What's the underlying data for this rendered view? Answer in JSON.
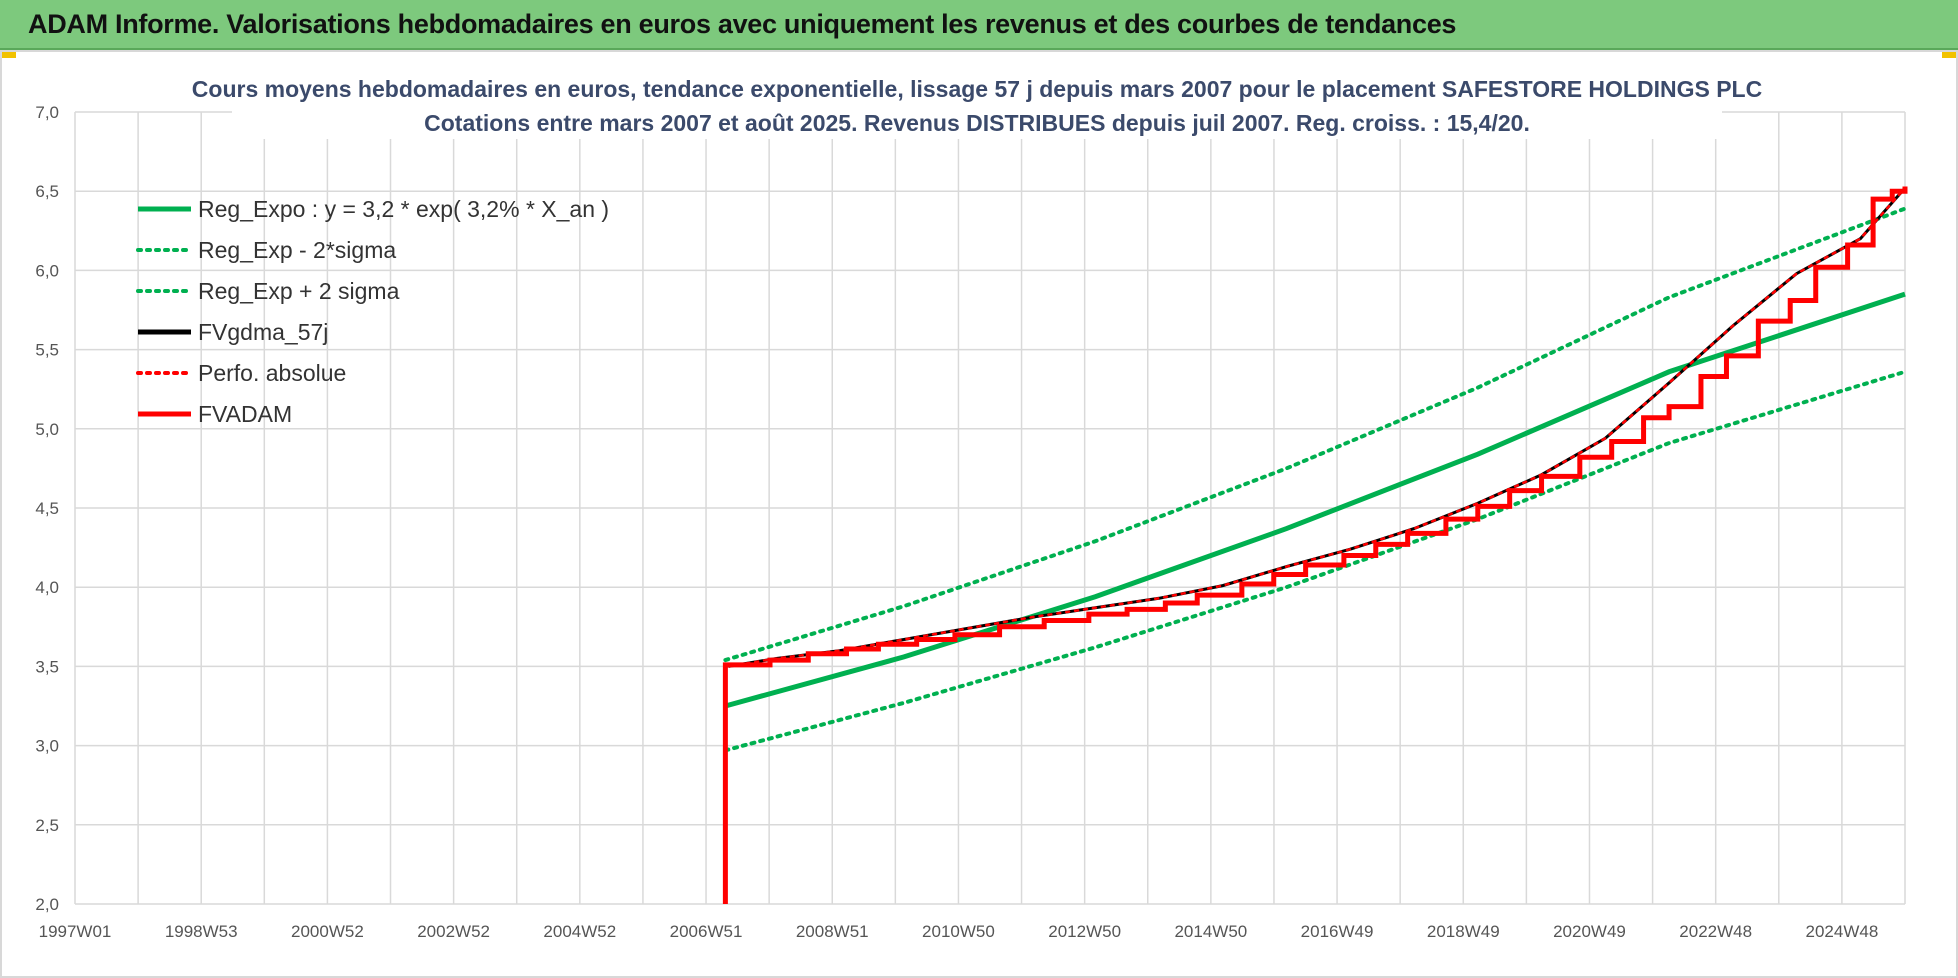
{
  "header": {
    "title": "ADAM Informe. Valorisations hebdomadaires en euros avec uniquement les revenus et des courbes de tendances"
  },
  "chart_data": {
    "type": "line",
    "title_line1": "Cours moyens hebdomadaires en euros, tendance exponentielle, lissage 57 j depuis mars 2007 pour le placement SAFESTORE HOLDINGS PLC",
    "title_line2": "Cotations entre mars 2007 et août 2025. Revenus DISTRIBUES depuis juil 2007. Reg. croiss. : 15,4/20.",
    "ylim": [
      2.0,
      7.0
    ],
    "xlim": [
      1997.0,
      2025.7
    ],
    "grid": true,
    "legend_position": "top-left",
    "y_ticks": [
      "2,0",
      "2,5",
      "3,0",
      "3,5",
      "4,0",
      "4,5",
      "5,0",
      "5,5",
      "6,0",
      "6,5",
      "7,0"
    ],
    "x_ticks": [
      "1997W01",
      "1998W53",
      "2000W52",
      "2002W52",
      "2004W52",
      "2006W51",
      "2008W51",
      "2010W50",
      "2012W50",
      "2014W50",
      "2016W49",
      "2018W49",
      "2020W49",
      "2022W48",
      "2024W48"
    ],
    "colors": {
      "green": "#00b050",
      "black": "#000000",
      "red": "#ff0000",
      "grid": "#d9d9d9"
    },
    "series": [
      {
        "name": "Reg_Expo : y = 3,2 * exp( 3,2% *  X_an )",
        "style": "solid",
        "color": "#00b050",
        "x": [
          2007.2,
          2010.0,
          2013.0,
          2016.0,
          2019.0,
          2022.0,
          2025.7
        ],
        "y": [
          3.25,
          3.56,
          3.94,
          4.37,
          4.84,
          5.36,
          5.85
        ]
      },
      {
        "name": "Reg_Exp - 2*sigma",
        "style": "dotted",
        "color": "#00b050",
        "x": [
          2007.2,
          2010.0,
          2013.0,
          2016.0,
          2019.0,
          2022.0,
          2025.7
        ],
        "y": [
          2.97,
          3.27,
          3.62,
          4.0,
          4.43,
          4.91,
          5.36
        ]
      },
      {
        "name": "Reg_Exp + 2 sigma",
        "style": "dotted",
        "color": "#00b050",
        "x": [
          2007.2,
          2010.0,
          2013.0,
          2016.0,
          2019.0,
          2022.0,
          2025.7
        ],
        "y": [
          3.54,
          3.88,
          4.29,
          4.75,
          5.26,
          5.83,
          6.39
        ]
      },
      {
        "name": "FVgdma_57j",
        "style": "solid",
        "color": "#000000",
        "x": [
          2007.25,
          2008.0,
          2009.0,
          2010.0,
          2011.0,
          2012.0,
          2013.0,
          2014.0,
          2015.0,
          2016.0,
          2017.0,
          2018.0,
          2019.0,
          2020.0,
          2021.0,
          2022.0,
          2023.0,
          2024.0,
          2025.0,
          2025.7
        ],
        "y": [
          3.5,
          3.55,
          3.6,
          3.67,
          3.74,
          3.81,
          3.87,
          3.93,
          4.01,
          4.13,
          4.24,
          4.37,
          4.53,
          4.71,
          4.94,
          5.29,
          5.65,
          5.98,
          6.2,
          6.52
        ]
      },
      {
        "name": "Perfo. absolue",
        "style": "dotted",
        "color": "#ff0000",
        "x": [
          2007.25,
          2008.0,
          2009.0,
          2010.0,
          2011.0,
          2012.0,
          2013.0,
          2014.0,
          2015.0,
          2016.0,
          2017.0,
          2018.0,
          2019.0,
          2020.0,
          2021.0,
          2022.0,
          2023.0,
          2024.0,
          2025.0,
          2025.7
        ],
        "y": [
          3.5,
          3.55,
          3.6,
          3.67,
          3.74,
          3.81,
          3.87,
          3.93,
          4.01,
          4.13,
          4.24,
          4.37,
          4.53,
          4.71,
          4.94,
          5.29,
          5.65,
          5.98,
          6.2,
          6.52
        ]
      },
      {
        "name": "FVADAM",
        "style": "solid",
        "color": "#ff0000",
        "x": [
          2007.2,
          2007.2,
          2007.9,
          2008.5,
          2009.1,
          2009.6,
          2010.2,
          2010.8,
          2011.5,
          2012.2,
          2012.9,
          2013.5,
          2014.1,
          2014.6,
          2015.3,
          2015.8,
          2016.3,
          2016.9,
          2017.4,
          2017.9,
          2018.5,
          2019.0,
          2019.5,
          2020.0,
          2020.6,
          2021.1,
          2021.6,
          2022.0,
          2022.5,
          2022.9,
          2023.4,
          2023.9,
          2024.3,
          2024.8,
          2025.2,
          2025.5,
          2025.7
        ],
        "y": [
          2.0,
          3.51,
          3.54,
          3.58,
          3.61,
          3.64,
          3.67,
          3.7,
          3.75,
          3.79,
          3.83,
          3.86,
          3.9,
          3.95,
          4.02,
          4.08,
          4.14,
          4.2,
          4.27,
          4.34,
          4.43,
          4.51,
          4.61,
          4.7,
          4.82,
          4.92,
          5.07,
          5.14,
          5.33,
          5.46,
          5.68,
          5.81,
          6.02,
          6.16,
          6.45,
          6.5,
          6.53
        ]
      }
    ]
  }
}
